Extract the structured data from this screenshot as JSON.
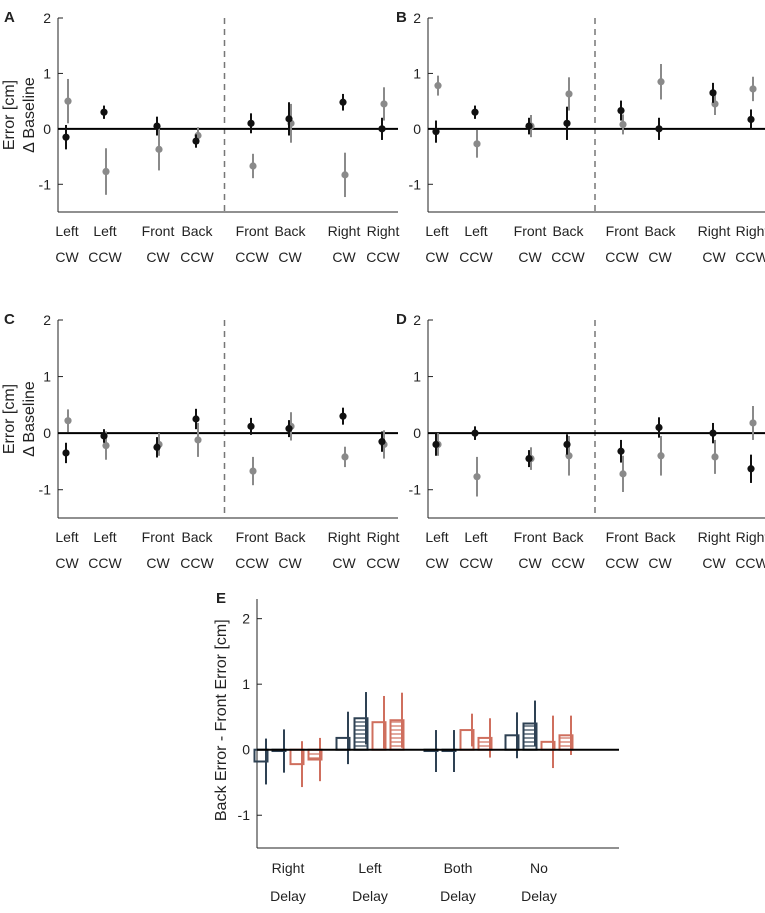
{
  "colors": {
    "black": "#111111",
    "gray": "#8a8a8a",
    "navy": "#2e4153",
    "salmon": "#cf6f5e",
    "dashed": "#777777"
  },
  "chart_data": [
    {
      "type": "scatter",
      "panel": "A",
      "ylabel_lines": [
        "Error [cm]",
        "Δ Baseline"
      ],
      "ylim": [
        -1.5,
        2
      ],
      "yticks": [
        "2",
        "1",
        "0",
        "-1"
      ],
      "categories": [
        [
          "Left",
          "CW"
        ],
        [
          "Left",
          "CCW"
        ],
        [
          "Front",
          "CW"
        ],
        [
          "Back",
          "CCW"
        ],
        [
          "Front",
          "CCW"
        ],
        [
          "Back",
          "CW"
        ],
        [
          "Right",
          "CW"
        ],
        [
          "Right",
          "CCW"
        ]
      ],
      "series": [
        {
          "name": "black",
          "values": [
            -0.15,
            0.3,
            0.05,
            -0.22,
            0.1,
            0.18,
            0.48,
            0.0
          ],
          "errors": [
            0.22,
            0.12,
            0.17,
            0.12,
            0.18,
            0.3,
            0.15,
            0.2
          ]
        },
        {
          "name": "gray",
          "values": [
            0.5,
            -0.77,
            -0.37,
            -0.12,
            -0.67,
            0.1,
            -0.83,
            0.45
          ],
          "errors": [
            0.4,
            0.42,
            0.38,
            0.15,
            0.22,
            0.35,
            0.4,
            0.3
          ]
        }
      ]
    },
    {
      "type": "scatter",
      "panel": "B",
      "ylabel_lines": [],
      "ylim": [
        -1.5,
        2
      ],
      "yticks": [
        "2",
        "1",
        "0",
        "-1"
      ],
      "categories": [
        [
          "Left",
          "CW"
        ],
        [
          "Left",
          "CCW"
        ],
        [
          "Front",
          "CW"
        ],
        [
          "Back",
          "CCW"
        ],
        [
          "Front",
          "CCW"
        ],
        [
          "Back",
          "CW"
        ],
        [
          "Right",
          "CW"
        ],
        [
          "Right",
          "CCW"
        ]
      ],
      "series": [
        {
          "name": "black",
          "values": [
            -0.05,
            0.3,
            0.05,
            0.1,
            0.33,
            0.0,
            0.65,
            0.17
          ],
          "errors": [
            0.2,
            0.12,
            0.15,
            0.3,
            0.18,
            0.2,
            0.18,
            0.18
          ]
        },
        {
          "name": "gray",
          "values": [
            0.78,
            -0.27,
            0.05,
            0.63,
            0.08,
            0.85,
            0.45,
            0.72
          ],
          "errors": [
            0.18,
            0.25,
            0.2,
            0.3,
            0.18,
            0.32,
            0.2,
            0.22
          ]
        }
      ]
    },
    {
      "type": "scatter",
      "panel": "C",
      "ylabel_lines": [
        "Error [cm]",
        "Δ Baseline"
      ],
      "ylim": [
        -1.5,
        2
      ],
      "yticks": [
        "2",
        "1",
        "0",
        "-1"
      ],
      "categories": [
        [
          "Left",
          "CW"
        ],
        [
          "Left",
          "CCW"
        ],
        [
          "Front",
          "CW"
        ],
        [
          "Back",
          "CCW"
        ],
        [
          "Front",
          "CCW"
        ],
        [
          "Back",
          "CW"
        ],
        [
          "Right",
          "CW"
        ],
        [
          "Right",
          "CCW"
        ]
      ],
      "series": [
        {
          "name": "black",
          "values": [
            -0.35,
            -0.05,
            -0.25,
            0.25,
            0.12,
            0.08,
            0.3,
            -0.15
          ],
          "errors": [
            0.18,
            0.12,
            0.18,
            0.18,
            0.15,
            0.15,
            0.15,
            0.18
          ]
        },
        {
          "name": "gray",
          "values": [
            0.22,
            -0.22,
            -0.2,
            -0.12,
            -0.67,
            0.12,
            -0.42,
            -0.2
          ],
          "errors": [
            0.2,
            0.25,
            0.2,
            0.3,
            0.25,
            0.25,
            0.18,
            0.25
          ]
        }
      ]
    },
    {
      "type": "scatter",
      "panel": "D",
      "ylabel_lines": [],
      "ylim": [
        -1.5,
        2
      ],
      "yticks": [
        "2",
        "1",
        "0",
        "-1"
      ],
      "categories": [
        [
          "Left",
          "CW"
        ],
        [
          "Left",
          "CCW"
        ],
        [
          "Front",
          "CW"
        ],
        [
          "Back",
          "CCW"
        ],
        [
          "Front",
          "CCW"
        ],
        [
          "Back",
          "CW"
        ],
        [
          "Right",
          "CW"
        ],
        [
          "Right",
          "CCW"
        ]
      ],
      "series": [
        {
          "name": "black",
          "values": [
            -0.2,
            0.0,
            -0.45,
            -0.2,
            -0.32,
            0.1,
            0.0,
            -0.63
          ],
          "errors": [
            0.2,
            0.12,
            0.15,
            0.18,
            0.2,
            0.18,
            0.18,
            0.25
          ]
        },
        {
          "name": "gray",
          "values": [
            -0.2,
            -0.77,
            -0.45,
            -0.4,
            -0.72,
            -0.4,
            -0.42,
            0.18
          ],
          "errors": [
            0.2,
            0.35,
            0.2,
            0.35,
            0.32,
            0.35,
            0.3,
            0.3
          ]
        }
      ]
    },
    {
      "type": "bar",
      "panel": "E",
      "ylabel": "Back Error - Front Error [cm]",
      "ylim": [
        -1.5,
        2.3
      ],
      "yticks": [
        "2",
        "1",
        "0",
        "-1"
      ],
      "categories": [
        [
          "Right",
          "Delay"
        ],
        [
          "Left",
          "Delay"
        ],
        [
          "Both",
          "Delay"
        ],
        [
          "No",
          "Delay"
        ]
      ],
      "series": [
        {
          "name": "navy-open",
          "color": "navy",
          "pattern": "none",
          "values": [
            -0.18,
            0.18,
            -0.02,
            0.22
          ],
          "errors": [
            0.35,
            0.4,
            0.32,
            0.35
          ]
        },
        {
          "name": "navy-hatched",
          "color": "navy",
          "pattern": "hatch",
          "values": [
            -0.02,
            0.48,
            -0.02,
            0.4
          ],
          "errors": [
            0.33,
            0.4,
            0.32,
            0.35
          ]
        },
        {
          "name": "salmon-open",
          "color": "salmon",
          "pattern": "none",
          "values": [
            -0.22,
            0.42,
            0.3,
            0.12
          ],
          "errors": [
            0.35,
            0.4,
            0.25,
            0.4
          ]
        },
        {
          "name": "salmon-hatched",
          "color": "salmon",
          "pattern": "hatch",
          "values": [
            -0.15,
            0.45,
            0.18,
            0.22
          ],
          "errors": [
            0.33,
            0.42,
            0.3,
            0.3
          ]
        }
      ]
    }
  ]
}
